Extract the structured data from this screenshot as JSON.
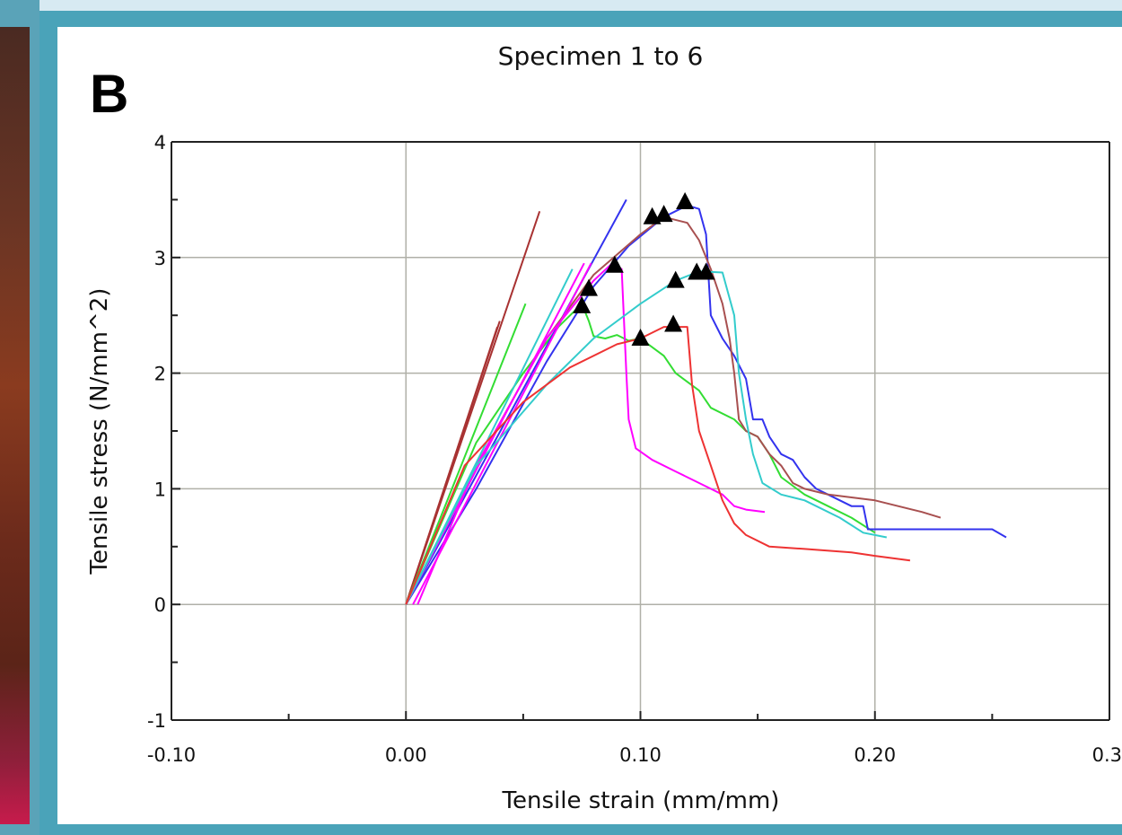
{
  "panel_letter": "B",
  "chart_data": {
    "type": "line",
    "title": "Specimen 1 to 6",
    "xlabel": "Tensile strain (mm/mm)",
    "ylabel": "Tensile stress (N/mm^2)",
    "xlim": [
      -0.1,
      0.3
    ],
    "ylim": [
      -1,
      4
    ],
    "x_ticks": [
      -0.1,
      0.0,
      0.1,
      0.2,
      0.3
    ],
    "x_tick_labels": [
      "-0.10",
      "0.00",
      "0.10",
      "0.20",
      "0.3"
    ],
    "y_ticks": [
      -1,
      0,
      1,
      2,
      3,
      4
    ],
    "y_tick_labels": [
      "-1",
      "0",
      "1",
      "2",
      "3",
      "4"
    ],
    "grid": true,
    "series": [
      {
        "color": "#a83232",
        "points": [
          [
            0.0,
            0.0
          ],
          [
            0.04,
            2.45
          ]
        ]
      },
      {
        "color": "#a83232",
        "points": [
          [
            0.0,
            0.0
          ],
          [
            0.039,
            2.4
          ]
        ]
      },
      {
        "color": "#a83232",
        "points": [
          [
            0.0,
            0.0
          ],
          [
            0.057,
            3.4
          ]
        ]
      },
      {
        "color": "#33dd33",
        "points": [
          [
            0.0,
            0.0
          ],
          [
            0.051,
            2.6
          ]
        ]
      },
      {
        "color": "#33dd33",
        "points": [
          [
            0.0,
            0.0
          ],
          [
            0.03,
            1.4
          ],
          [
            0.05,
            2.0
          ],
          [
            0.065,
            2.4
          ],
          [
            0.075,
            2.6
          ],
          [
            0.078,
            2.45
          ],
          [
            0.08,
            2.32
          ],
          [
            0.085,
            2.3
          ],
          [
            0.09,
            2.33
          ],
          [
            0.095,
            2.28
          ],
          [
            0.1,
            2.3
          ],
          [
            0.11,
            2.15
          ],
          [
            0.115,
            2.0
          ],
          [
            0.125,
            1.85
          ],
          [
            0.13,
            1.7
          ],
          [
            0.14,
            1.6
          ],
          [
            0.145,
            1.5
          ],
          [
            0.15,
            1.45
          ],
          [
            0.155,
            1.3
          ],
          [
            0.16,
            1.1
          ],
          [
            0.17,
            0.95
          ],
          [
            0.18,
            0.85
          ],
          [
            0.19,
            0.75
          ],
          [
            0.2,
            0.62
          ]
        ]
      },
      {
        "color": "#3333ee",
        "points": [
          [
            0.0,
            0.0
          ],
          [
            0.094,
            3.5
          ]
        ]
      },
      {
        "color": "#3333ee",
        "points": [
          [
            0.0,
            0.0
          ],
          [
            0.03,
            1.0
          ],
          [
            0.06,
            2.1
          ],
          [
            0.08,
            2.75
          ],
          [
            0.095,
            3.1
          ],
          [
            0.11,
            3.35
          ],
          [
            0.12,
            3.45
          ],
          [
            0.125,
            3.42
          ],
          [
            0.128,
            3.2
          ],
          [
            0.13,
            2.5
          ],
          [
            0.135,
            2.3
          ],
          [
            0.14,
            2.15
          ],
          [
            0.145,
            1.95
          ],
          [
            0.148,
            1.6
          ],
          [
            0.152,
            1.6
          ],
          [
            0.155,
            1.45
          ],
          [
            0.16,
            1.3
          ],
          [
            0.165,
            1.25
          ],
          [
            0.17,
            1.1
          ],
          [
            0.175,
            1.0
          ],
          [
            0.18,
            0.95
          ],
          [
            0.19,
            0.85
          ],
          [
            0.195,
            0.85
          ],
          [
            0.197,
            0.65
          ],
          [
            0.22,
            0.65
          ],
          [
            0.25,
            0.65
          ],
          [
            0.256,
            0.58
          ]
        ]
      },
      {
        "color": "#a85050",
        "points": [
          [
            0.0,
            0.0
          ],
          [
            0.03,
            1.2
          ],
          [
            0.06,
            2.3
          ],
          [
            0.08,
            2.85
          ],
          [
            0.1,
            3.2
          ],
          [
            0.11,
            3.35
          ],
          [
            0.12,
            3.3
          ],
          [
            0.125,
            3.15
          ],
          [
            0.13,
            2.9
          ],
          [
            0.135,
            2.6
          ],
          [
            0.138,
            2.3
          ],
          [
            0.14,
            2.0
          ],
          [
            0.142,
            1.6
          ],
          [
            0.145,
            1.5
          ],
          [
            0.15,
            1.45
          ],
          [
            0.155,
            1.3
          ],
          [
            0.16,
            1.2
          ],
          [
            0.165,
            1.05
          ],
          [
            0.17,
            1.0
          ],
          [
            0.18,
            0.95
          ],
          [
            0.2,
            0.9
          ],
          [
            0.22,
            0.8
          ],
          [
            0.228,
            0.75
          ]
        ]
      },
      {
        "color": "#ff00ff",
        "points": [
          [
            0.0,
            0.0
          ],
          [
            0.076,
            2.95
          ]
        ]
      },
      {
        "color": "#ff00ff",
        "points": [
          [
            0.003,
            0.0
          ],
          [
            0.079,
            2.95
          ]
        ]
      },
      {
        "color": "#ff00ff",
        "points": [
          [
            0.005,
            0.0
          ],
          [
            0.03,
            1.2
          ],
          [
            0.06,
            2.3
          ],
          [
            0.08,
            2.8
          ],
          [
            0.088,
            2.95
          ],
          [
            0.092,
            2.9
          ],
          [
            0.094,
            2.0
          ],
          [
            0.095,
            1.6
          ],
          [
            0.098,
            1.35
          ],
          [
            0.105,
            1.25
          ],
          [
            0.115,
            1.15
          ],
          [
            0.12,
            1.1
          ],
          [
            0.13,
            1.0
          ],
          [
            0.135,
            0.95
          ],
          [
            0.14,
            0.85
          ],
          [
            0.145,
            0.82
          ],
          [
            0.153,
            0.8
          ]
        ]
      },
      {
        "color": "#33cccc",
        "points": [
          [
            0.0,
            0.0
          ],
          [
            0.071,
            2.9
          ]
        ]
      },
      {
        "color": "#33cccc",
        "points": [
          [
            0.0,
            0.0
          ],
          [
            0.03,
            1.2
          ],
          [
            0.06,
            1.9
          ],
          [
            0.08,
            2.3
          ],
          [
            0.1,
            2.6
          ],
          [
            0.115,
            2.8
          ],
          [
            0.125,
            2.88
          ],
          [
            0.135,
            2.87
          ],
          [
            0.14,
            2.5
          ],
          [
            0.142,
            2.0
          ],
          [
            0.145,
            1.6
          ],
          [
            0.148,
            1.3
          ],
          [
            0.152,
            1.05
          ],
          [
            0.16,
            0.95
          ],
          [
            0.17,
            0.9
          ],
          [
            0.185,
            0.75
          ],
          [
            0.195,
            0.62
          ],
          [
            0.205,
            0.58
          ]
        ]
      },
      {
        "color": "#ee3333",
        "points": [
          [
            0.0,
            0.0
          ],
          [
            0.025,
            1.2
          ],
          [
            0.05,
            1.75
          ],
          [
            0.07,
            2.05
          ],
          [
            0.09,
            2.25
          ],
          [
            0.1,
            2.3
          ],
          [
            0.11,
            2.4
          ],
          [
            0.12,
            2.4
          ],
          [
            0.122,
            1.9
          ],
          [
            0.125,
            1.5
          ],
          [
            0.13,
            1.2
          ],
          [
            0.135,
            0.9
          ],
          [
            0.14,
            0.7
          ],
          [
            0.145,
            0.6
          ],
          [
            0.155,
            0.5
          ],
          [
            0.17,
            0.48
          ],
          [
            0.19,
            0.45
          ],
          [
            0.2,
            0.42
          ],
          [
            0.215,
            0.38
          ]
        ]
      }
    ],
    "markers": {
      "shape": "triangle",
      "color": "#000000",
      "points": [
        [
          0.075,
          2.58
        ],
        [
          0.078,
          2.73
        ],
        [
          0.089,
          2.93
        ],
        [
          0.1,
          2.3
        ],
        [
          0.105,
          3.35
        ],
        [
          0.11,
          3.37
        ],
        [
          0.114,
          2.42
        ],
        [
          0.115,
          2.8
        ],
        [
          0.119,
          3.48
        ],
        [
          0.124,
          2.87
        ],
        [
          0.128,
          2.87
        ]
      ]
    }
  }
}
